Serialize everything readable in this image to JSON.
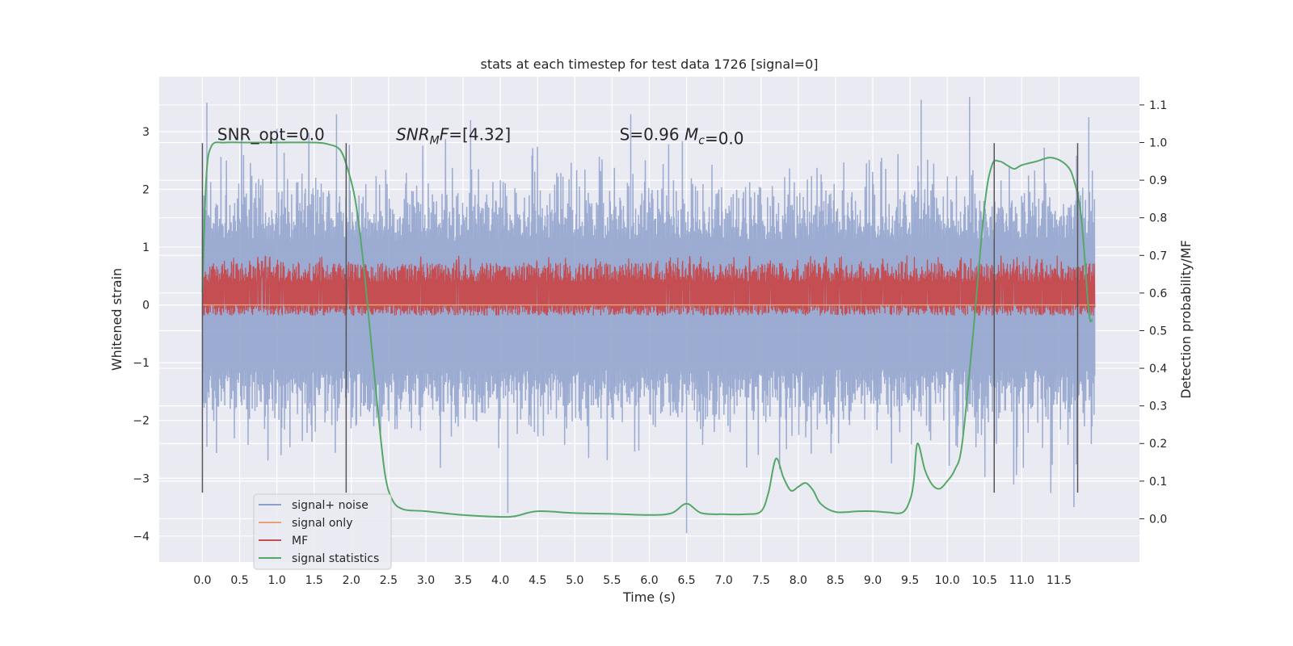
{
  "chart_data": {
    "type": "line",
    "title": "stats at each timestep for test data 1726 [signal=0]",
    "xlabel": "Time (s)",
    "ylabel": "Whitened strain",
    "y2label": "Detection probability/MF",
    "xlim": [
      -0.58,
      12.58
    ],
    "ylim": [
      -4.45,
      3.95
    ],
    "y2lim": [
      -0.115,
      1.175
    ],
    "xticks": [
      0.0,
      0.5,
      1.0,
      1.5,
      2.0,
      2.5,
      3.0,
      3.5,
      4.0,
      4.5,
      5.0,
      5.5,
      6.0,
      6.5,
      7.0,
      7.5,
      8.0,
      8.5,
      9.0,
      9.5,
      10.0,
      10.5,
      11.0,
      11.5
    ],
    "xtick_labels": [
      "0.0",
      "0.5",
      "1.0",
      "1.5",
      "2.0",
      "2.5",
      "3.0",
      "3.5",
      "4.0",
      "4.5",
      "5.0",
      "5.5",
      "6.0",
      "6.5",
      "7.0",
      "7.5",
      "8.0",
      "8.5",
      "9.0",
      "9.5",
      "10.0",
      "10.5",
      "11.0",
      "11.5"
    ],
    "yticks": [
      -4,
      -3,
      -2,
      -1,
      0,
      1,
      2,
      3
    ],
    "ytick_labels": [
      "−4",
      "−3",
      "−2",
      "−1",
      "0",
      "1",
      "2",
      "3"
    ],
    "y2ticks": [
      0.0,
      0.1,
      0.2,
      0.3,
      0.4,
      0.5,
      0.6,
      0.7,
      0.8,
      0.9,
      1.0,
      1.1
    ],
    "y2tick_labels": [
      "0.0",
      "0.1",
      "0.2",
      "0.3",
      "0.4",
      "0.5",
      "0.6",
      "0.7",
      "0.8",
      "0.9",
      "1.0",
      "1.1"
    ],
    "grid": true,
    "legend_position": "lower-left",
    "annotations": [
      {
        "text": "SNR_opt=0.0",
        "x": 0.2,
        "y": 2.85
      },
      {
        "text": "SNR_MF=[4.32]",
        "x": 2.6,
        "y": 2.85
      },
      {
        "text": "S=0.96   M_c=0.0",
        "x": 5.6,
        "y": 2.85
      }
    ],
    "vlines": [
      0.0,
      1.93,
      10.63,
      11.75
    ],
    "vline_range": [
      -3.25,
      2.8
    ],
    "series": [
      {
        "name": "signal+ noise",
        "axis": "left",
        "color": "#8da0cb",
        "style": "noise",
        "x_range": [
          0.0,
          11.98
        ],
        "amplitude_typical": [
          -2.1,
          2.3
        ],
        "peaks": [
          [
            0.06,
            3.5
          ],
          [
            1.0,
            3.05
          ],
          [
            1.8,
            3.3
          ],
          [
            3.6,
            3.2
          ],
          [
            4.1,
            -3.6
          ],
          [
            5.75,
            3.3
          ],
          [
            6.5,
            -3.95
          ],
          [
            9.65,
            3.55
          ],
          [
            10.3,
            3.6
          ],
          [
            11.7,
            -3.5
          ],
          [
            11.9,
            3.25
          ]
        ]
      },
      {
        "name": "signal only",
        "axis": "left",
        "color": "#e8a07a",
        "style": "flat",
        "x": [
          0.0,
          11.98
        ],
        "values": [
          0.0,
          0.0
        ]
      },
      {
        "name": "MF",
        "axis": "right",
        "color": "#c44e52",
        "style": "noise-band",
        "x_range": [
          0.0,
          11.98
        ],
        "band": [
          0.54,
          0.68
        ],
        "spike_max": 0.7
      },
      {
        "name": "signal statistics",
        "axis": "right",
        "color": "#55a868",
        "style": "line",
        "x": [
          0.0,
          0.05,
          0.12,
          0.3,
          0.6,
          1.0,
          1.5,
          1.7,
          1.85,
          1.95,
          2.05,
          2.15,
          2.25,
          2.35,
          2.45,
          2.55,
          2.7,
          3.0,
          3.5,
          4.0,
          4.2,
          4.5,
          5.0,
          5.5,
          6.0,
          6.3,
          6.5,
          6.7,
          7.0,
          7.3,
          7.5,
          7.6,
          7.7,
          7.8,
          7.9,
          8.0,
          8.1,
          8.2,
          8.3,
          8.5,
          8.8,
          9.0,
          9.2,
          9.4,
          9.5,
          9.55,
          9.6,
          9.7,
          9.8,
          9.9,
          10.0,
          10.1,
          10.2,
          10.35,
          10.5,
          10.6,
          10.7,
          10.8,
          10.9,
          11.0,
          11.2,
          11.4,
          11.6,
          11.7,
          11.8,
          11.9,
          11.95
        ],
        "values": [
          0.6,
          0.9,
          0.99,
          1.0,
          1.0,
          1.0,
          1.0,
          0.995,
          0.98,
          0.93,
          0.85,
          0.7,
          0.5,
          0.3,
          0.12,
          0.05,
          0.025,
          0.02,
          0.01,
          0.005,
          0.007,
          0.02,
          0.015,
          0.013,
          0.01,
          0.015,
          0.04,
          0.015,
          0.012,
          0.012,
          0.02,
          0.07,
          0.16,
          0.11,
          0.075,
          0.085,
          0.095,
          0.075,
          0.04,
          0.018,
          0.02,
          0.02,
          0.017,
          0.017,
          0.05,
          0.1,
          0.2,
          0.13,
          0.09,
          0.08,
          0.1,
          0.13,
          0.2,
          0.5,
          0.83,
          0.94,
          0.95,
          0.94,
          0.93,
          0.94,
          0.95,
          0.96,
          0.94,
          0.9,
          0.8,
          0.55,
          0.53
        ]
      }
    ]
  }
}
